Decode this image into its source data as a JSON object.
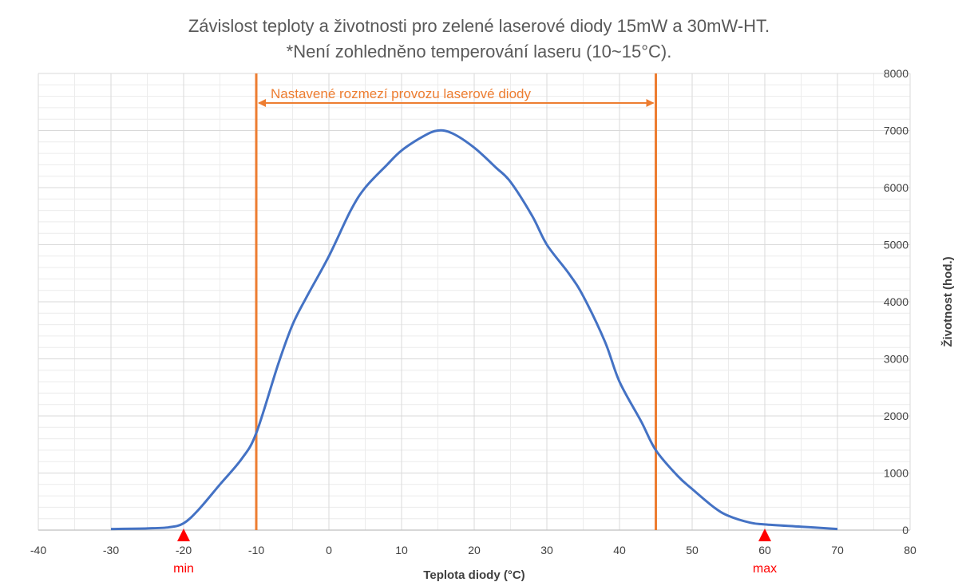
{
  "chart_data": {
    "type": "line",
    "title": "Závislost teploty a životnosti pro zelené laserové diody 15mW a 30mW-HT.",
    "subtitle": "*Není zohledněno temperování laseru (10~15°C).",
    "xlabel": "Teplota diody (°C)",
    "ylabel": "Životnost (hod.)",
    "xlim": [
      -40,
      80
    ],
    "ylim": [
      0,
      8000
    ],
    "x_ticks": [
      "-40",
      "-30",
      "-20",
      "-10",
      "0",
      "10",
      "20",
      "30",
      "40",
      "50",
      "60",
      "70",
      "80"
    ],
    "y_ticks": [
      "0",
      "1000",
      "2000",
      "3000",
      "4000",
      "5000",
      "6000",
      "7000",
      "8000"
    ],
    "grid": true,
    "y_axis_side": "right",
    "series": [
      {
        "color": "#4472C4",
        "x": [
          -30,
          -25,
          -22,
          -20,
          -18,
          -15,
          -12,
          -10,
          -7,
          -5,
          -3,
          0,
          3,
          5,
          8,
          10,
          13,
          15,
          17,
          20,
          23,
          25,
          28,
          30,
          33,
          35,
          38,
          40,
          43,
          45,
          48,
          50,
          53,
          55,
          58,
          60,
          65,
          70
        ],
        "y": [
          20,
          30,
          50,
          120,
          350,
          800,
          1250,
          1700,
          2900,
          3600,
          4100,
          4800,
          5600,
          6000,
          6400,
          6650,
          6900,
          7000,
          6950,
          6700,
          6350,
          6100,
          5500,
          5000,
          4500,
          4100,
          3300,
          2600,
          1900,
          1400,
          950,
          720,
          400,
          250,
          130,
          100,
          60,
          20
        ]
      }
    ],
    "annotations": {
      "range_lines": [
        -10,
        45
      ],
      "range_color": "#ED7D31",
      "range_label": "Nastavené rozmezí provozu laserové diody",
      "markers": [
        {
          "x": -20,
          "label": "min"
        },
        {
          "x": 60,
          "label": "max"
        }
      ],
      "marker_color": "#FF0000"
    }
  }
}
